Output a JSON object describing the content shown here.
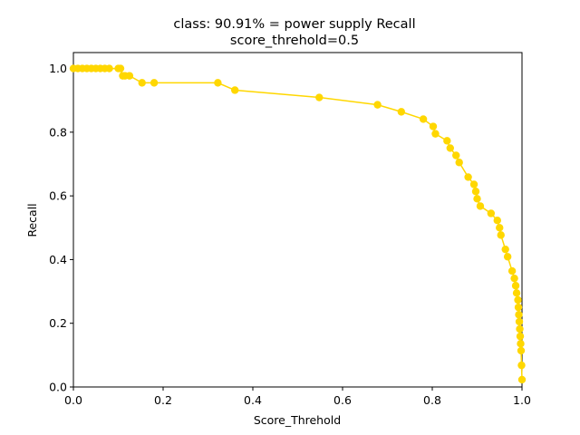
{
  "chart_data": {
    "type": "line",
    "title": "class: 90.91% = power supply Recall",
    "subtitle": "score_threhold=0.5",
    "xlabel": "Score_Threhold",
    "ylabel": "Recall",
    "xlim": [
      0.0,
      1.0
    ],
    "ylim": [
      0.0,
      1.05
    ],
    "xticks": [
      "0.0",
      "0.2",
      "0.4",
      "0.6",
      "0.8",
      "1.0"
    ],
    "yticks": [
      "0.0",
      "0.2",
      "0.4",
      "0.6",
      "0.8",
      "1.0"
    ],
    "grid": false,
    "series": [
      {
        "color": "#ffd700",
        "marker": "circle",
        "x": [
          0.0,
          0.01,
          0.02,
          0.03,
          0.04,
          0.05,
          0.06,
          0.07,
          0.08,
          0.1,
          0.105,
          0.11,
          0.115,
          0.125,
          0.153,
          0.18,
          0.322,
          0.36,
          0.548,
          0.678,
          0.731,
          0.78,
          0.802,
          0.807,
          0.833,
          0.84,
          0.853,
          0.86,
          0.88,
          0.893,
          0.897,
          0.9,
          0.907,
          0.931,
          0.945,
          0.95,
          0.953,
          0.963,
          0.968,
          0.978,
          0.983,
          0.986,
          0.988,
          0.991,
          0.992,
          0.993,
          0.994,
          0.995,
          0.996,
          0.997,
          0.998,
          0.999,
          1.0
        ],
        "y": [
          1.0,
          1.0,
          1.0,
          1.0,
          1.0,
          1.0,
          1.0,
          1.0,
          1.0,
          1.0,
          1.0,
          0.977,
          0.977,
          0.977,
          0.955,
          0.955,
          0.955,
          0.932,
          0.909,
          0.886,
          0.864,
          0.841,
          0.818,
          0.795,
          0.773,
          0.75,
          0.727,
          0.705,
          0.659,
          0.636,
          0.614,
          0.591,
          0.568,
          0.545,
          0.523,
          0.5,
          0.477,
          0.432,
          0.409,
          0.364,
          0.341,
          0.318,
          0.295,
          0.273,
          0.25,
          0.227,
          0.205,
          0.182,
          0.159,
          0.136,
          0.114,
          0.068,
          0.023
        ]
      }
    ]
  }
}
